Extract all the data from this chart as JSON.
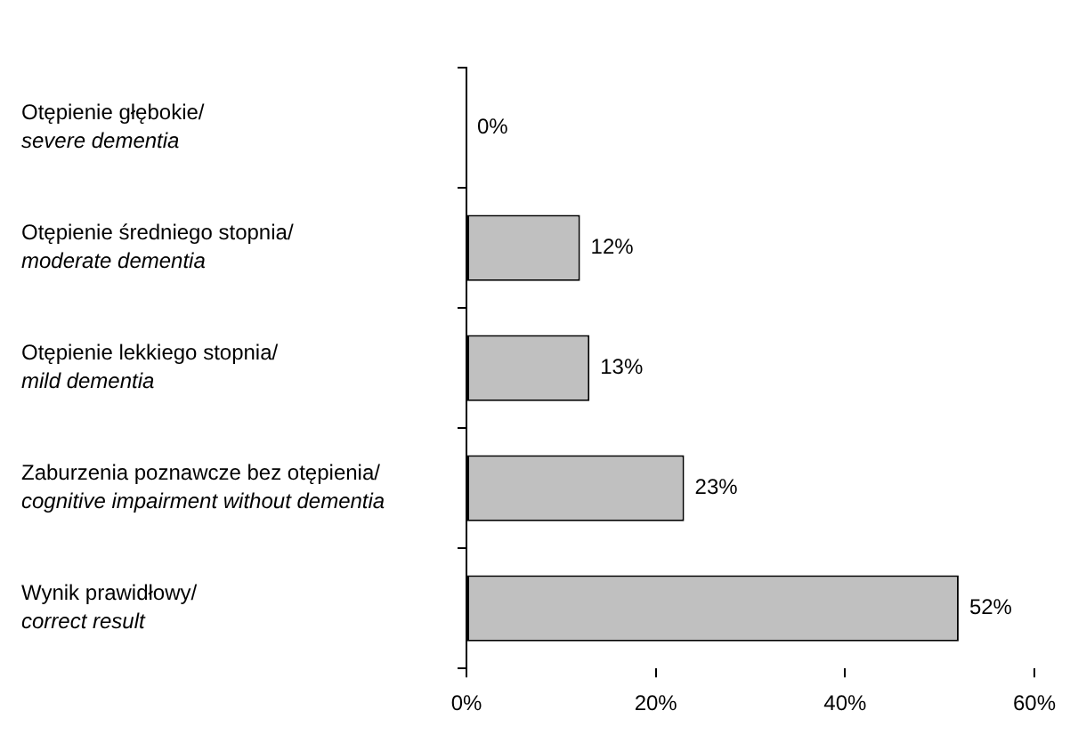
{
  "chart_data": {
    "type": "bar",
    "orientation": "horizontal",
    "categories": [
      "Otępienie głębokie/\nsevere dementia",
      "Otępienie średniego stopnia/\nmoderate dementia",
      "Otępienie lekkiego stopnia/\nmild dementia",
      "Zaburzenia poznawcze bez otępienia/\ncognitive impairment without dementia",
      "Wynik prawidłowy/\ncorrect result"
    ],
    "values": [
      0,
      12,
      13,
      23,
      52
    ],
    "value_labels": [
      "0%",
      "12%",
      "13%",
      "23%",
      "52%"
    ],
    "color": "#c0c0c0",
    "xlim": [
      0,
      60
    ],
    "xticks": [
      {
        "value": 0,
        "label": "0%"
      },
      {
        "value": 20,
        "label": "20%"
      },
      {
        "value": 40,
        "label": "40%"
      },
      {
        "value": 60,
        "label": "60%"
      }
    ],
    "grid": false,
    "legend": false
  }
}
